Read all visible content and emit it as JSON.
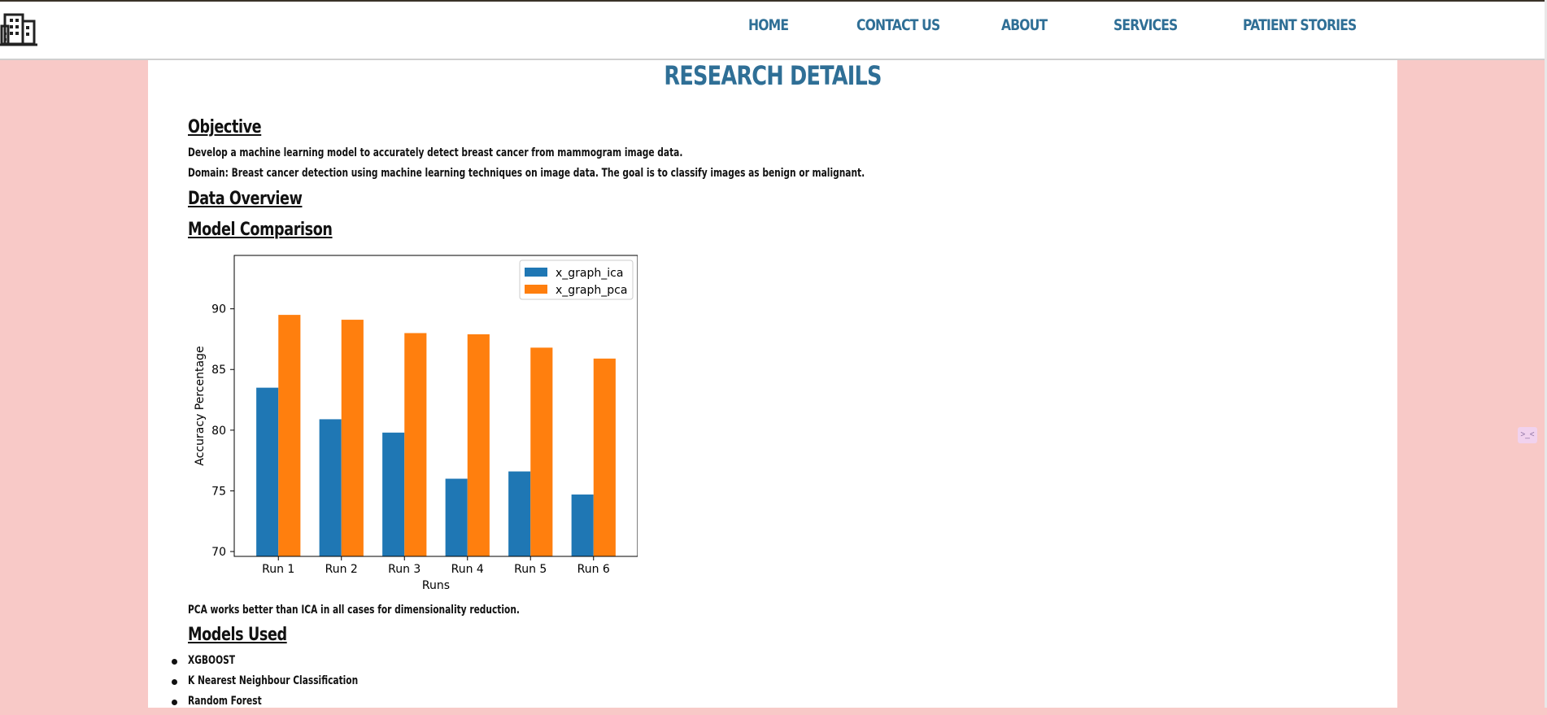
{
  "nav": {
    "items": [
      "HOME",
      "CONTACT US",
      "ABOUT",
      "SERVICES",
      "PATIENT STORIES"
    ]
  },
  "page": {
    "title": "RESEARCH DETAILS"
  },
  "objective": {
    "heading": "Objective",
    "line1": "Develop a machine learning model to accurately detect breast cancer from mammogram image data.",
    "line2": "Domain: Breast cancer detection using machine learning techniques on image data. The goal is to classify images as benign or malignant."
  },
  "data_overview": {
    "heading": "Data Overview"
  },
  "model_comparison": {
    "heading": "Model Comparison",
    "conclusion": "PCA works better than ICA in all cases for dimensionality reduction."
  },
  "models_used": {
    "heading": "Models Used",
    "items": [
      "XGBOOST",
      "K Nearest Neighbour Classification",
      "Random Forest"
    ]
  },
  "colors": {
    "background": "#f8c9c7",
    "accent": "#2f6f96",
    "series_ica": "#1f77b4",
    "series_pca": "#ff7f0e"
  },
  "icons": {
    "logo": "building-icon",
    "side_widget": "extension-icon"
  },
  "side_widget": {
    "label": ">_<"
  },
  "chart_data": {
    "type": "bar",
    "title": "",
    "xlabel": "Runs",
    "ylabel": "Accuracy Percentage",
    "categories": [
      "Run 1",
      "Run 2",
      "Run 3",
      "Run 4",
      "Run 5",
      "Run 6"
    ],
    "series": [
      {
        "name": "x_graph_ica",
        "values": [
          83.5,
          80.9,
          79.8,
          76.0,
          76.6,
          74.7
        ]
      },
      {
        "name": "x_graph_pca",
        "values": [
          89.5,
          89.1,
          88.0,
          87.9,
          86.8,
          85.9
        ]
      }
    ],
    "ylim": [
      69.6,
      94.4
    ],
    "yticks": [
      70,
      75,
      80,
      85,
      90
    ],
    "legend": "top-right",
    "grid": false
  }
}
